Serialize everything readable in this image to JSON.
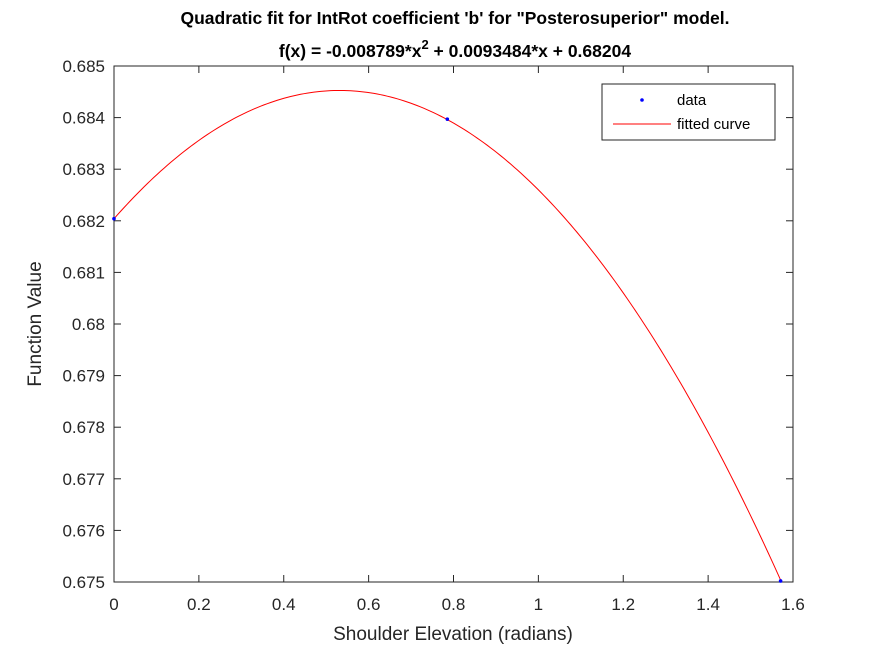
{
  "chart_data": {
    "type": "line",
    "title_line1": "Quadratic fit for IntRot coefficient 'b' for \"Posterosuperior\" model.",
    "title_line2": {
      "prefix": "f(x) = -0.008789*x",
      "superscript": "2",
      "suffix": " + 0.0093484*x + 0.68204"
    },
    "xlabel": "Shoulder Elevation (radians)",
    "ylabel": "Function Value",
    "xlim": [
      0,
      1.6
    ],
    "ylim": [
      0.675,
      0.685
    ],
    "x_ticks": [
      "0",
      "0.2",
      "0.4",
      "0.6",
      "0.8",
      "1",
      "1.2",
      "1.4",
      "1.6"
    ],
    "y_ticks": [
      "0.675",
      "0.676",
      "0.677",
      "0.678",
      "0.679",
      "0.68",
      "0.681",
      "0.682",
      "0.683",
      "0.684",
      "0.685"
    ],
    "grid": false,
    "legend_position": "top-right",
    "series": [
      {
        "name": "data",
        "kind": "points",
        "color": "#0000ff",
        "x": [
          0,
          0.7854,
          1.5708
        ],
        "y": [
          0.68204,
          0.68397,
          0.67502
        ]
      },
      {
        "name": "fitted curve",
        "kind": "curve",
        "color": "#ff0000",
        "coefficients": {
          "a": -0.008789,
          "b": 0.0093484,
          "c": 0.68204
        },
        "x_range": [
          0,
          1.5708
        ]
      }
    ]
  }
}
